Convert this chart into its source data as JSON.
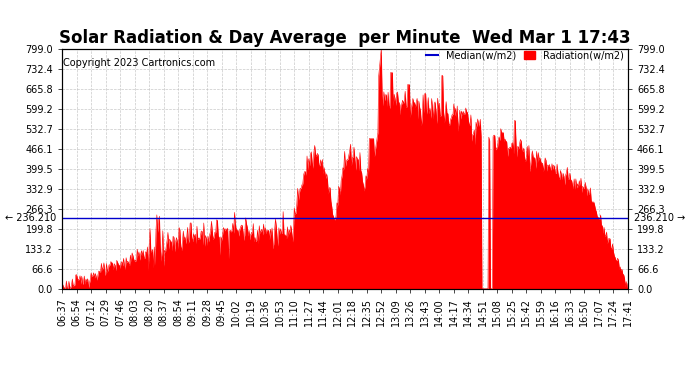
{
  "title": "Solar Radiation & Day Average  per Minute  Wed Mar 1 17:43",
  "copyright": "Copyright 2023 Cartronics.com",
  "legend_median_label": "Median(w/m2)",
  "legend_radiation_label": "Radiation(w/m2)",
  "median_value": 236.21,
  "median_label": "236.210",
  "ymin": 0.0,
  "ymax": 799.0,
  "yticks": [
    0.0,
    66.6,
    133.2,
    199.8,
    266.3,
    332.9,
    399.5,
    466.1,
    532.7,
    599.2,
    665.8,
    732.4,
    799.0
  ],
  "background_color": "#ffffff",
  "fill_color": "#ff0000",
  "median_line_color": "#0000cc",
  "grid_color": "#bbbbbb",
  "title_fontsize": 12,
  "copyright_fontsize": 7,
  "tick_fontsize": 7,
  "xtick_labels": [
    "06:37",
    "06:54",
    "07:12",
    "07:29",
    "07:46",
    "08:03",
    "08:20",
    "08:37",
    "08:54",
    "09:11",
    "09:28",
    "09:45",
    "10:02",
    "10:19",
    "10:36",
    "10:53",
    "11:10",
    "11:27",
    "11:44",
    "12:01",
    "12:18",
    "12:35",
    "12:52",
    "13:09",
    "13:26",
    "13:43",
    "14:00",
    "14:17",
    "14:34",
    "14:51",
    "15:08",
    "15:25",
    "15:42",
    "15:59",
    "16:16",
    "16:33",
    "16:50",
    "17:07",
    "17:24",
    "17:41"
  ]
}
